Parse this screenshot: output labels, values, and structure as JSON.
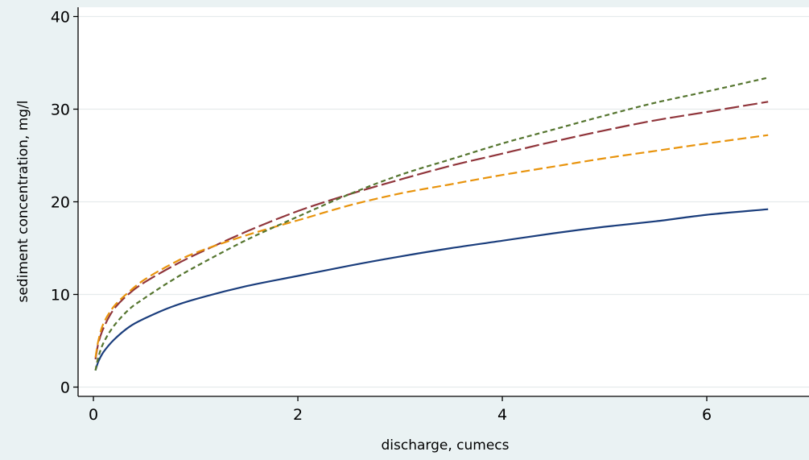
{
  "chart_data": {
    "type": "line",
    "xlabel": "discharge, cumecs",
    "ylabel": "sediment concentration, mg/l",
    "xlim": [
      -0.15,
      7
    ],
    "ylim": [
      -1,
      41
    ],
    "x_ticks": [
      0,
      2,
      4,
      6
    ],
    "y_ticks": [
      0,
      10,
      20,
      30,
      40
    ],
    "grid": true,
    "legend": "none",
    "series": [
      {
        "color": "#1a3d7c",
        "dash": "solid",
        "x": [
          0.02,
          0.05,
          0.1,
          0.2,
          0.35,
          0.5,
          0.75,
          1,
          1.5,
          2,
          2.5,
          3,
          3.5,
          4,
          4.5,
          5,
          5.5,
          6,
          6.6
        ],
        "y": [
          1.8,
          2.8,
          3.8,
          5.1,
          6.5,
          7.4,
          8.6,
          9.5,
          10.9,
          12.0,
          13.1,
          14.1,
          15.0,
          15.8,
          16.6,
          17.3,
          17.9,
          18.6,
          19.2
        ]
      },
      {
        "color": "#90353b",
        "dash": "long-dash",
        "x": [
          0.02,
          0.05,
          0.1,
          0.2,
          0.35,
          0.5,
          0.75,
          1,
          1.5,
          2,
          2.5,
          3,
          3.5,
          4,
          4.5,
          5,
          5.5,
          6,
          6.6
        ],
        "y": [
          3.0,
          4.8,
          6.4,
          8.4,
          10.1,
          11.3,
          12.9,
          14.3,
          16.8,
          19.0,
          20.8,
          22.4,
          23.9,
          25.2,
          26.5,
          27.7,
          28.8,
          29.7,
          30.8
        ]
      },
      {
        "color": "#e8930c",
        "dash": "dash",
        "x": [
          0.02,
          0.05,
          0.1,
          0.2,
          0.35,
          0.5,
          0.75,
          1,
          1.5,
          2,
          2.5,
          3,
          3.5,
          4,
          4.5,
          5,
          5.5,
          6,
          6.6
        ],
        "y": [
          3.2,
          5.1,
          6.9,
          8.7,
          10.3,
          11.6,
          13.2,
          14.5,
          16.4,
          18.0,
          19.6,
          20.9,
          21.9,
          22.9,
          23.8,
          24.7,
          25.5,
          26.3,
          27.2
        ]
      },
      {
        "color": "#55752f",
        "dash": "short-dash",
        "x": [
          0.02,
          0.05,
          0.1,
          0.2,
          0.35,
          0.5,
          0.75,
          1,
          1.5,
          2,
          2.5,
          3,
          3.5,
          4,
          4.5,
          5,
          5.5,
          6,
          6.6
        ],
        "y": [
          1.8,
          3.3,
          4.8,
          6.6,
          8.4,
          9.6,
          11.4,
          13.0,
          15.9,
          18.4,
          20.8,
          22.9,
          24.6,
          26.3,
          27.8,
          29.3,
          30.7,
          31.9,
          33.4
        ]
      }
    ]
  }
}
